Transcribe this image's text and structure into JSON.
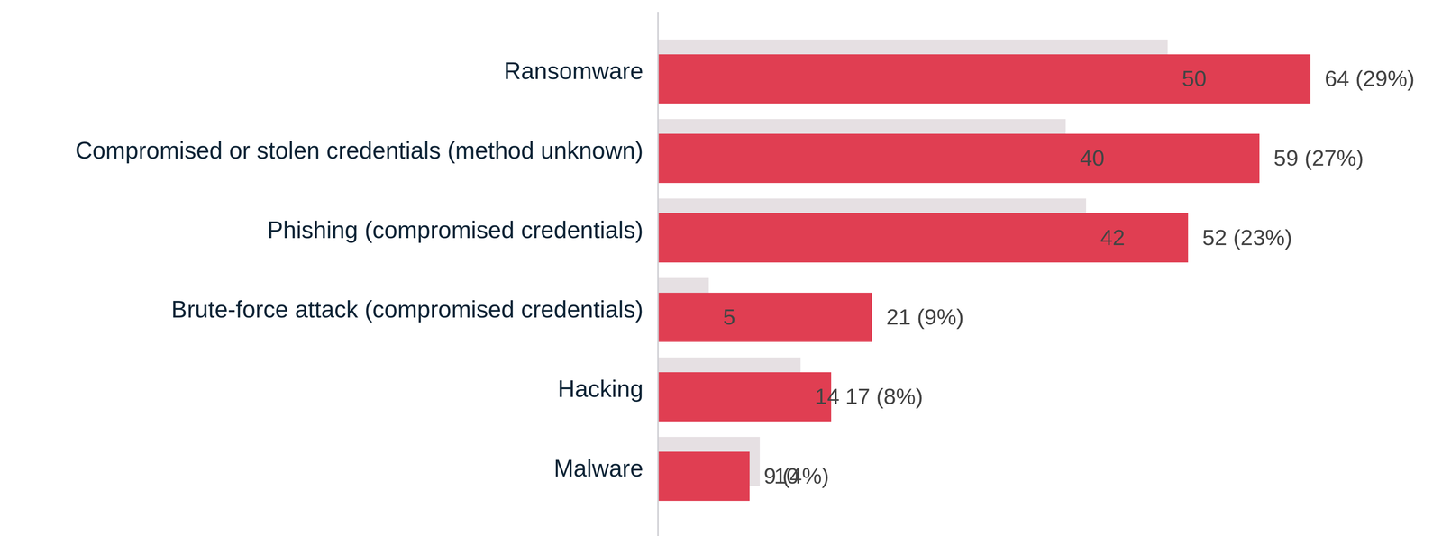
{
  "chart_data": {
    "type": "bar",
    "orientation": "horizontal",
    "categories": [
      "Ransomware",
      "Compromised or stolen credentials (method unknown)",
      "Phishing (compromised credentials)",
      "Brute-force attack (compromised credentials)",
      "Hacking",
      "Malware"
    ],
    "series": [
      {
        "color": "#e6e0e3",
        "values": [
          50,
          40,
          42,
          5,
          14,
          10
        ]
      },
      {
        "color": "#e03e52",
        "values": [
          64,
          59,
          52,
          21,
          17,
          9
        ],
        "value_labels": [
          "64 (29%)",
          "59 (27%)",
          "52 (23%)",
          "21 (9%)",
          "17 (8%)",
          "9 (4%)"
        ]
      }
    ],
    "xlim": [
      0,
      64
    ],
    "data_labels": true,
    "tick_labels": "y"
  }
}
